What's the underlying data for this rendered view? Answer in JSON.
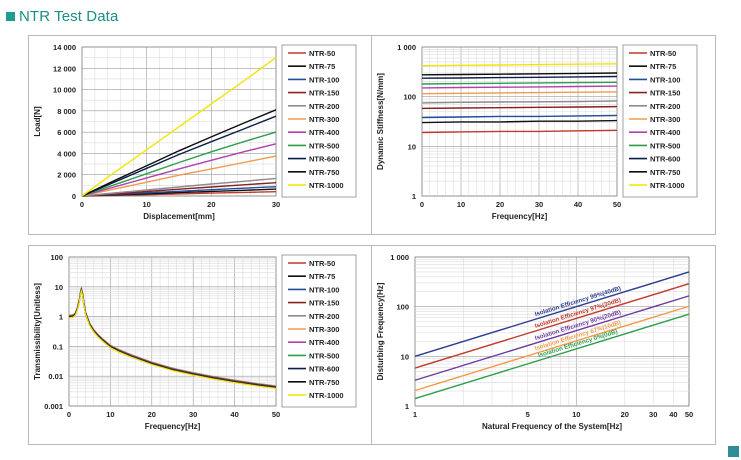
{
  "page": {
    "title": "NTR Test Data",
    "accent_color": "#1f9b8f"
  },
  "legend_labels": [
    "NTR-50",
    "NTR-75",
    "NTR-100",
    "NTR-150",
    "NTR-200",
    "NTR-300",
    "NTR-400",
    "NTR-500",
    "NTR-600",
    "NTR-750",
    "NTR-1000"
  ],
  "series_colors": [
    "#c0392b",
    "#111111",
    "#1f4e9c",
    "#8b2020",
    "#8c8c8c",
    "#f39a4a",
    "#b042b0",
    "#2e9e4d",
    "#0b1f4a",
    "#0d0d0d",
    "#f2e600"
  ],
  "chart_data": [
    {
      "type": "line",
      "xlabel": "Displacement[mm]",
      "ylabel": "Load[N]",
      "xlim": [
        0,
        30
      ],
      "ylim": [
        0,
        14000
      ],
      "xticks": [
        0,
        10,
        20,
        30
      ],
      "yticks": [
        0,
        2000,
        4000,
        6000,
        8000,
        10000,
        12000,
        14000
      ],
      "ytick_labels": [
        "0",
        "2 000",
        "4 000",
        "6 000",
        "8 000",
        "10 000",
        "12 000",
        "14 000"
      ],
      "grid": true,
      "legend_position": "right",
      "series": [
        {
          "name": "NTR-50",
          "x": [
            0,
            5,
            10,
            15,
            20,
            25,
            30
          ],
          "y": [
            0,
            60,
            120,
            200,
            270,
            340,
            400
          ]
        },
        {
          "name": "NTR-75",
          "x": [
            0,
            5,
            10,
            15,
            20,
            25,
            30
          ],
          "y": [
            0,
            100,
            200,
            320,
            430,
            540,
            650
          ]
        },
        {
          "name": "NTR-100",
          "x": [
            0,
            5,
            10,
            15,
            20,
            25,
            30
          ],
          "y": [
            0,
            150,
            300,
            440,
            590,
            730,
            870
          ]
        },
        {
          "name": "NTR-150",
          "x": [
            0,
            5,
            10,
            15,
            20,
            25,
            30
          ],
          "y": [
            0,
            200,
            420,
            640,
            850,
            1050,
            1250
          ]
        },
        {
          "name": "NTR-200",
          "x": [
            0,
            5,
            10,
            15,
            20,
            25,
            30
          ],
          "y": [
            0,
            280,
            560,
            850,
            1130,
            1380,
            1650
          ]
        },
        {
          "name": "NTR-300",
          "x": [
            0,
            5,
            10,
            15,
            20,
            25,
            30
          ],
          "y": [
            0,
            650,
            1300,
            1950,
            2550,
            3150,
            3750
          ]
        },
        {
          "name": "NTR-400",
          "x": [
            0,
            5,
            10,
            15,
            20,
            25,
            30
          ],
          "y": [
            0,
            850,
            1700,
            2550,
            3350,
            4150,
            4900
          ]
        },
        {
          "name": "NTR-500",
          "x": [
            0,
            5,
            10,
            15,
            20,
            25,
            30
          ],
          "y": [
            0,
            1050,
            2100,
            3150,
            4150,
            5100,
            6000
          ]
        },
        {
          "name": "NTR-600",
          "x": [
            0,
            5,
            10,
            15,
            20,
            25,
            30
          ],
          "y": [
            0,
            1300,
            2600,
            3900,
            5100,
            6300,
            7500
          ]
        },
        {
          "name": "NTR-750",
          "x": [
            0,
            5,
            10,
            15,
            20,
            25,
            30
          ],
          "y": [
            0,
            1450,
            2850,
            4250,
            5550,
            6850,
            8100
          ]
        },
        {
          "name": "NTR-1000",
          "x": [
            0,
            5,
            10,
            15,
            20,
            25,
            30
          ],
          "y": [
            0,
            2200,
            4350,
            6500,
            8650,
            10800,
            13000
          ]
        }
      ]
    },
    {
      "type": "line",
      "xlabel": "Frequency[Hz]",
      "ylabel": "Dynamic Stiffness[N/mm]",
      "xlim": [
        0,
        50
      ],
      "ylim": [
        1,
        1000
      ],
      "yscale": "log",
      "xticks": [
        0,
        10,
        20,
        30,
        40,
        50
      ],
      "yticks": [
        1,
        10,
        100,
        1000
      ],
      "ytick_labels": [
        "1",
        "10",
        "100",
        "1 000"
      ],
      "grid": true,
      "legend_position": "right",
      "series": [
        {
          "name": "NTR-50",
          "x": [
            0,
            10,
            20,
            30,
            40,
            50
          ],
          "y": [
            19,
            19.5,
            20,
            20,
            20.5,
            21
          ]
        },
        {
          "name": "NTR-75",
          "x": [
            0,
            10,
            20,
            30,
            40,
            50
          ],
          "y": [
            30,
            31,
            31,
            32,
            32,
            33
          ]
        },
        {
          "name": "NTR-100",
          "x": [
            0,
            10,
            20,
            30,
            40,
            50
          ],
          "y": [
            38,
            39,
            40,
            40,
            41,
            42
          ]
        },
        {
          "name": "NTR-150",
          "x": [
            0,
            10,
            20,
            30,
            40,
            50
          ],
          "y": [
            58,
            59,
            60,
            61,
            62,
            63
          ]
        },
        {
          "name": "NTR-200",
          "x": [
            0,
            10,
            20,
            30,
            40,
            50
          ],
          "y": [
            75,
            77,
            78,
            79,
            80,
            82
          ]
        },
        {
          "name": "NTR-300",
          "x": [
            0,
            10,
            20,
            30,
            40,
            50
          ],
          "y": [
            115,
            117,
            119,
            121,
            123,
            125
          ]
        },
        {
          "name": "NTR-400",
          "x": [
            0,
            10,
            20,
            30,
            40,
            50
          ],
          "y": [
            150,
            153,
            155,
            157,
            160,
            163
          ]
        },
        {
          "name": "NTR-500",
          "x": [
            0,
            10,
            20,
            30,
            40,
            50
          ],
          "y": [
            180,
            183,
            186,
            189,
            192,
            195
          ]
        },
        {
          "name": "NTR-600",
          "x": [
            0,
            10,
            20,
            30,
            40,
            50
          ],
          "y": [
            235,
            238,
            242,
            246,
            250,
            255
          ]
        },
        {
          "name": "NTR-750",
          "x": [
            0,
            10,
            20,
            30,
            40,
            50
          ],
          "y": [
            275,
            280,
            284,
            289,
            294,
            300
          ]
        },
        {
          "name": "NTR-1000",
          "x": [
            0,
            10,
            20,
            30,
            40,
            50
          ],
          "y": [
            420,
            428,
            435,
            442,
            450,
            458
          ]
        }
      ]
    },
    {
      "type": "line",
      "xlabel": "Frequency[Hz]",
      "ylabel": "Transmissibility[Unitless]",
      "xlim": [
        0,
        50
      ],
      "ylim": [
        0.001,
        100
      ],
      "yscale": "log",
      "xticks": [
        0,
        10,
        20,
        30,
        40,
        50
      ],
      "yticks": [
        0.001,
        0.01,
        0.1,
        1,
        10,
        100
      ],
      "ytick_labels": [
        "0.001",
        "0.01",
        "0.1",
        "1",
        "10",
        "100"
      ],
      "grid": true,
      "legend_position": "right",
      "series_note_shared_curve": true,
      "x": [
        0,
        1,
        1.5,
        2,
        2.5,
        2.8,
        3,
        3.3,
        3.6,
        4,
        5,
        6,
        7,
        8,
        10,
        12,
        15,
        20,
        25,
        30,
        35,
        40,
        45,
        50
      ],
      "y": [
        1,
        1.05,
        1.2,
        1.8,
        3.5,
        6.5,
        8,
        5.5,
        2.8,
        1.3,
        0.55,
        0.33,
        0.23,
        0.17,
        0.1,
        0.072,
        0.048,
        0.027,
        0.017,
        0.012,
        0.0088,
        0.0067,
        0.0053,
        0.0043
      ]
    },
    {
      "type": "line",
      "xlabel": "Natural Frequency of the System[Hz]",
      "ylabel": "Disturbing Frequency[Hz]",
      "xscale": "log",
      "yscale": "log",
      "xlim": [
        1,
        50
      ],
      "ylim": [
        1,
        1000
      ],
      "xticks": [
        1,
        5,
        10,
        20,
        30,
        40,
        50
      ],
      "yticks": [
        1,
        10,
        100,
        1000
      ],
      "ytick_labels": [
        "1",
        "10",
        "100",
        "1 000"
      ],
      "grid": true,
      "series": [
        {
          "name": "Isolation Efficiency 99%(40dB)",
          "x": [
            1,
            50
          ],
          "y": [
            10,
            500
          ],
          "color": "#2b3c8f"
        },
        {
          "name": "Isolation Efficiency 97%(30dB)",
          "x": [
            1,
            50
          ],
          "y": [
            5.8,
            290
          ],
          "color": "#c0392b"
        },
        {
          "name": "Isolation Efficiency 90%(20dB)",
          "x": [
            1,
            50
          ],
          "y": [
            3.3,
            165
          ],
          "color": "#6b3aa0"
        },
        {
          "name": "Isolation Efficiency 67%(10dB)",
          "x": [
            1,
            50
          ],
          "y": [
            2.05,
            102
          ],
          "color": "#f39a4a"
        },
        {
          "name": "Isolation Efficiency 0%(0dB)",
          "x": [
            1,
            50
          ],
          "y": [
            1.41,
            70.7
          ],
          "color": "#2e9e4d"
        }
      ]
    }
  ]
}
